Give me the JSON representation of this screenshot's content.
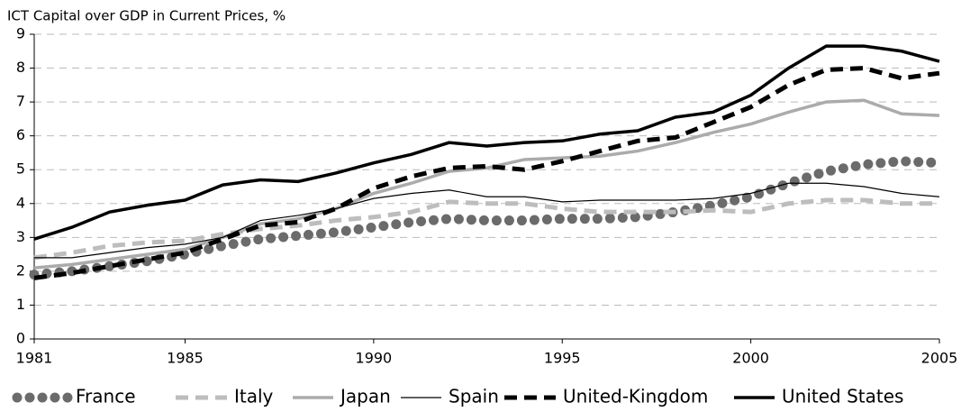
{
  "chart_data": {
    "type": "line",
    "title": "ICT Capital over GDP in Current Prices, %",
    "x": [
      1981,
      1982,
      1983,
      1984,
      1985,
      1986,
      1987,
      1988,
      1989,
      1990,
      1991,
      1992,
      1993,
      1994,
      1995,
      1996,
      1997,
      1998,
      1999,
      2000,
      2001,
      2002,
      2003,
      2004,
      2005
    ],
    "series": [
      {
        "name": "France",
        "color": "#6b6b6b",
        "style": "dots",
        "values": [
          1.9,
          2.0,
          2.15,
          2.3,
          2.5,
          2.75,
          2.95,
          3.05,
          3.15,
          3.3,
          3.45,
          3.55,
          3.5,
          3.5,
          3.55,
          3.55,
          3.6,
          3.75,
          3.95,
          4.2,
          4.6,
          4.95,
          5.15,
          5.25,
          5.2
        ]
      },
      {
        "name": "Italy",
        "color": "#bdbdbd",
        "style": "dashed",
        "values": [
          2.4,
          2.55,
          2.75,
          2.85,
          2.9,
          3.1,
          3.25,
          3.35,
          3.5,
          3.6,
          3.75,
          4.05,
          4.0,
          4.0,
          3.85,
          3.75,
          3.75,
          3.75,
          3.8,
          3.75,
          4.0,
          4.1,
          4.1,
          4.0,
          4.0
        ]
      },
      {
        "name": "Japan",
        "color": "#ababab",
        "style": "solid",
        "values": [
          2.1,
          2.2,
          2.35,
          2.5,
          2.65,
          3.0,
          3.4,
          3.55,
          3.85,
          4.3,
          4.6,
          4.95,
          5.05,
          5.3,
          5.35,
          5.4,
          5.55,
          5.8,
          6.1,
          6.35,
          6.7,
          7.0,
          7.05,
          6.65,
          6.6
        ]
      },
      {
        "name": "Spain",
        "color": "#000000",
        "style": "thin",
        "values": [
          2.4,
          2.4,
          2.55,
          2.7,
          2.8,
          3.0,
          3.5,
          3.65,
          3.85,
          4.15,
          4.3,
          4.4,
          4.2,
          4.2,
          4.05,
          4.1,
          4.1,
          4.1,
          4.15,
          4.3,
          4.6,
          4.6,
          4.5,
          4.3,
          4.2
        ]
      },
      {
        "name": "United-Kingdom",
        "color": "#000000",
        "style": "dashed",
        "values": [
          1.8,
          1.95,
          2.15,
          2.35,
          2.55,
          2.95,
          3.35,
          3.45,
          3.85,
          4.45,
          4.8,
          5.05,
          5.1,
          5.0,
          5.25,
          5.55,
          5.85,
          5.95,
          6.4,
          6.85,
          7.5,
          7.95,
          8.0,
          7.7,
          7.85
        ]
      },
      {
        "name": "United States",
        "color": "#000000",
        "style": "solid",
        "values": [
          2.95,
          3.3,
          3.75,
          3.95,
          4.1,
          4.55,
          4.7,
          4.65,
          4.9,
          5.2,
          5.45,
          5.8,
          5.7,
          5.8,
          5.85,
          6.05,
          6.15,
          6.55,
          6.7,
          7.2,
          8.0,
          8.65,
          8.65,
          8.5,
          8.2
        ]
      }
    ],
    "xlim": [
      1981,
      2005
    ],
    "xticks": [
      1981,
      1985,
      1990,
      1995,
      2000,
      2005
    ],
    "ylim": [
      0,
      9
    ],
    "yticks": [
      0,
      1,
      2,
      3,
      4,
      5,
      6,
      7,
      8,
      9
    ],
    "grid": true,
    "legend": "bottom"
  }
}
